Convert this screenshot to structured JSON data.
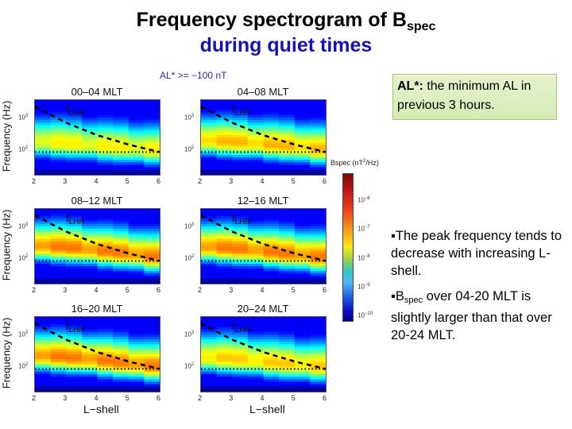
{
  "title": {
    "line1_prefix": "Frequency spectrogram of B",
    "line1_subscript": "spec",
    "line2": "during quiet times"
  },
  "condition_label": "AL* >= −100 nT",
  "note_box": {
    "bold": "AL*:",
    "text": " the minimum AL in previous 3 hours."
  },
  "bullets": [
    {
      "marker": "▪",
      "text": "The peak frequency tends to decrease with increasing L-shell."
    },
    {
      "marker": "▪",
      "prefix": "B",
      "subscript": "spec",
      "text": " over 04-20 MLT is slightly larger than that over 20-24 MLT."
    }
  ],
  "axes": {
    "ylabel": "Frequency (Hz)",
    "xlabel": "L−shell",
    "yticks": [
      {
        "base": "10",
        "exp": "3"
      },
      {
        "base": "10",
        "exp": "2"
      }
    ],
    "xticks": [
      "2",
      "3",
      "4",
      "5",
      "6"
    ],
    "flhr_label": "f",
    "flhr_sub": "LHR"
  },
  "colorbar": {
    "title_prefix": "Bspec (nT",
    "title_exp": "2",
    "title_suffix": "/Hz)",
    "ticks": [
      {
        "base": "10",
        "exp": "−6"
      },
      {
        "base": "10",
        "exp": "−7"
      },
      {
        "base": "10",
        "exp": "−8"
      },
      {
        "base": "10",
        "exp": "−9"
      },
      {
        "base": "10",
        "exp": "−10"
      }
    ]
  },
  "chart_data": {
    "type": "heatmap",
    "title": "Frequency spectrogram of Bspec during quiet times",
    "subtitle": "AL* >= -100 nT",
    "xlabel": "L-shell",
    "ylabel": "Frequency (Hz)",
    "xlim": [
      2,
      6
    ],
    "ylim_log10": [
      1.3,
      3.6
    ],
    "yscale": "log",
    "colorbar": {
      "label": "Bspec (nT^2/Hz)",
      "scale": "log",
      "range": [
        1e-10,
        1e-05
      ],
      "colormap": "jet"
    },
    "reference_lines": [
      {
        "name": "fLHR",
        "style": "dashed",
        "x": [
          2,
          3,
          4,
          5,
          6
        ],
        "y_hz": [
          2500,
          800,
          330,
          170,
          100
        ]
      },
      {
        "name": "100 Hz",
        "style": "dotted",
        "y_hz": 100
      }
    ],
    "panels": [
      {
        "title": "00–04 MLT",
        "peak_log10_bspec": -6.8,
        "peak_freq_hz_by_L": [
          200,
          180,
          150,
          130,
          110
        ]
      },
      {
        "title": "04–08 MLT",
        "peak_log10_bspec": -6.5,
        "peak_freq_hz_by_L": [
          220,
          200,
          170,
          140,
          110
        ]
      },
      {
        "title": "08–12 MLT",
        "peak_log10_bspec": -6.2,
        "peak_freq_hz_by_L": [
          280,
          250,
          200,
          160,
          120
        ]
      },
      {
        "title": "12–16 MLT",
        "peak_log10_bspec": -6.2,
        "peak_freq_hz_by_L": [
          260,
          230,
          190,
          150,
          120
        ]
      },
      {
        "title": "16–20 MLT",
        "peak_log10_bspec": -6.2,
        "peak_freq_hz_by_L": [
          250,
          220,
          180,
          140,
          110
        ]
      },
      {
        "title": "20–24 MLT",
        "peak_log10_bspec": -6.6,
        "peak_freq_hz_by_L": [
          220,
          200,
          160,
          130,
          110
        ]
      }
    ]
  }
}
